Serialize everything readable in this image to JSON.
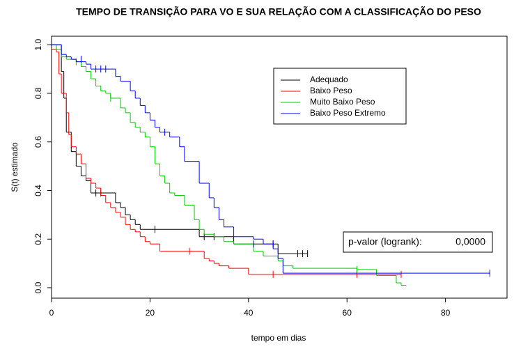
{
  "chart_data": {
    "type": "step",
    "title": "TEMPO DE TRANSIÇÃO PARA VO E SUA RELAÇÃO COM A CLASSIFICAÇÃO DO PESO",
    "xlabel": "tempo em dias",
    "ylabel": "S(t) estimado",
    "xlim": [
      0,
      92.5
    ],
    "ylim": [
      -0.043,
      1.035
    ],
    "xticks": [
      0,
      20,
      40,
      60,
      80
    ],
    "yticks": [
      {
        "value": 0,
        "label": "0.0"
      },
      0.2,
      0.4,
      0.6,
      0.8,
      {
        "value": 1,
        "label": "1.0"
      }
    ],
    "legend": "top-right",
    "annotation": {
      "label": "p-valor (logrank):",
      "value_label": "0,0000"
    },
    "series": [
      {
        "name": "Adequado",
        "color": "#000000",
        "x": [
          0,
          2,
          2.5,
          3,
          4,
          5,
          6,
          7,
          8,
          13,
          14,
          15,
          16,
          17,
          18,
          30,
          37,
          46
        ],
        "values": [
          1,
          0.89,
          0.78,
          0.64,
          0.56,
          0.5,
          0.46,
          0.44,
          0.39,
          0.35,
          0.33,
          0.3,
          0.28,
          0.26,
          0.24,
          0.21,
          0.18,
          0.14
        ],
        "censor_x": [
          9,
          10,
          21,
          31,
          33,
          45,
          50,
          51,
          52
        ],
        "censor_values": [
          0.39,
          0.39,
          0.24,
          0.21,
          0.21,
          0.18,
          0.14,
          0.14,
          0.14
        ]
      },
      {
        "name": "Baixo Peso",
        "color": "#ff0000",
        "x": [
          0,
          1,
          1.5,
          2,
          3,
          3.5,
          4,
          5,
          6,
          7,
          8,
          9,
          10,
          11,
          12,
          13,
          14,
          15,
          16,
          17,
          18,
          19,
          20,
          22,
          31,
          32,
          33,
          34,
          36,
          40
        ],
        "values": [
          0.98,
          0.97,
          0.88,
          0.8,
          0.72,
          0.63,
          0.58,
          0.55,
          0.51,
          0.45,
          0.43,
          0.41,
          0.38,
          0.35,
          0.33,
          0.31,
          0.29,
          0.26,
          0.24,
          0.23,
          0.21,
          0.19,
          0.18,
          0.15,
          0.12,
          0.11,
          0.1,
          0.09,
          0.08,
          0.055
        ],
        "censor_x": [
          28,
          45,
          62,
          71
        ],
        "censor_values": [
          0.15,
          0.055,
          0.055,
          0.055
        ]
      },
      {
        "name": "Muito Baixo Peso",
        "color": "#00cc00",
        "x": [
          0,
          1,
          2,
          3,
          5,
          6,
          7,
          8,
          9,
          10,
          11,
          12,
          14,
          15,
          16,
          17,
          18,
          19,
          20,
          21,
          22,
          23,
          24,
          25,
          27,
          29,
          30,
          31,
          33,
          35,
          37,
          41,
          43,
          46,
          47,
          49,
          62,
          66,
          70,
          71,
          72
        ],
        "values": [
          1,
          0.98,
          0.95,
          0.94,
          0.93,
          0.91,
          0.89,
          0.86,
          0.83,
          0.81,
          0.8,
          0.78,
          0.74,
          0.72,
          0.68,
          0.66,
          0.64,
          0.62,
          0.58,
          0.51,
          0.46,
          0.43,
          0.39,
          0.38,
          0.34,
          0.28,
          0.24,
          0.22,
          0.21,
          0.19,
          0.18,
          0.15,
          0.13,
          0.11,
          0.09,
          0.08,
          0.075,
          0.05,
          0.02,
          0.01,
          0.01
        ],
        "censor_x": [
          5,
          12,
          62
        ],
        "censor_values": [
          0.93,
          0.78,
          0.075
        ]
      },
      {
        "name": "Baixo Peso Extremo",
        "color": "#0000ff",
        "x": [
          0,
          2,
          3,
          4,
          5,
          7,
          8,
          13,
          14,
          16,
          17,
          18,
          19,
          20,
          21,
          22,
          24,
          26,
          27,
          30,
          32,
          33,
          34,
          35,
          37,
          41,
          43,
          45,
          46,
          47
        ],
        "values": [
          1,
          0.96,
          0.95,
          0.94,
          0.93,
          0.92,
          0.9,
          0.87,
          0.85,
          0.81,
          0.78,
          0.75,
          0.72,
          0.69,
          0.66,
          0.64,
          0.62,
          0.58,
          0.52,
          0.43,
          0.37,
          0.33,
          0.28,
          0.25,
          0.21,
          0.2,
          0.18,
          0.16,
          0.12,
          0.06
        ],
        "censor_x": [
          6,
          9,
          10,
          11,
          23,
          41,
          45,
          89
        ],
        "censor_values": [
          0.94,
          0.9,
          0.9,
          0.9,
          0.64,
          0.18,
          0.18,
          0.06
        ]
      }
    ]
  }
}
